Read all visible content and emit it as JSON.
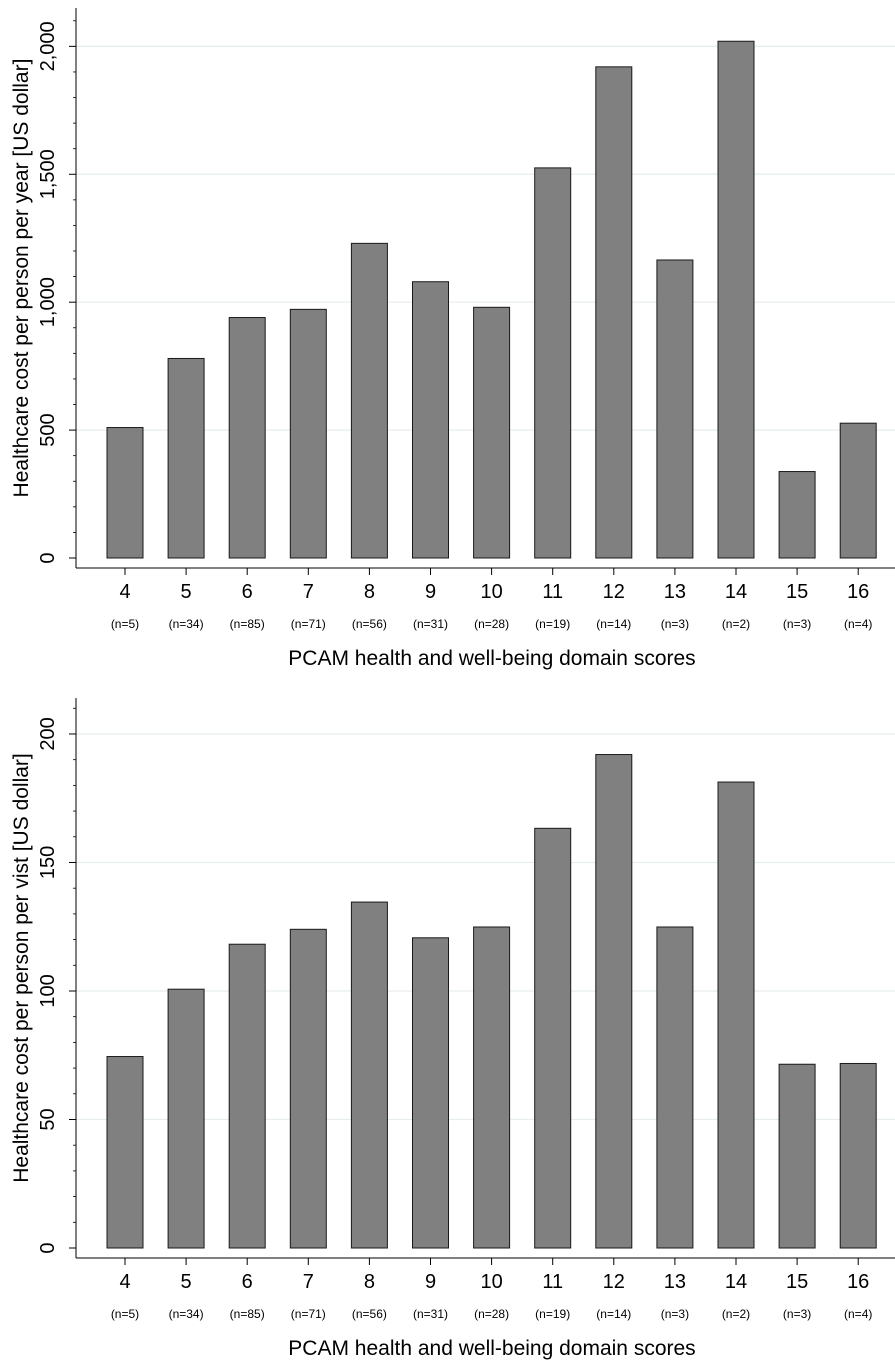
{
  "chart_data": [
    {
      "type": "bar",
      "title": "",
      "xlabel": "PCAM health and well-being domain scores",
      "ylabel": "Healthcare cost per person per year [US dollar]",
      "categories": [
        "4",
        "5",
        "6",
        "7",
        "8",
        "9",
        "10",
        "11",
        "12",
        "13",
        "14",
        "15",
        "16"
      ],
      "counts": [
        "(n=5)",
        "(n=34)",
        "(n=85)",
        "(n=71)",
        "(n=56)",
        "(n=31)",
        "(n=28)",
        "(n=19)",
        "(n=14)",
        "(n=3)",
        "(n=2)",
        "(n=3)",
        "(n=4)"
      ],
      "values": [
        510,
        780,
        940,
        972,
        1230,
        1080,
        980,
        1525,
        1920,
        1165,
        2020,
        338,
        527
      ],
      "ylim": [
        0,
        2150
      ],
      "yticks": [
        0,
        500,
        1000,
        1500,
        2000
      ],
      "ytick_labels": [
        "0",
        "500",
        "1,000",
        "1,500",
        "2,000"
      ],
      "minor_tick_step": 100,
      "grid": true,
      "bar_color": "#808080"
    },
    {
      "type": "bar",
      "title": "",
      "xlabel": "PCAM health and well-being domain scores",
      "ylabel": "Healthcare cost per person per vist [US dollar]",
      "categories": [
        "4",
        "5",
        "6",
        "7",
        "8",
        "9",
        "10",
        "11",
        "12",
        "13",
        "14",
        "15",
        "16"
      ],
      "counts": [
        "(n=5)",
        "(n=34)",
        "(n=85)",
        "(n=71)",
        "(n=56)",
        "(n=31)",
        "(n=28)",
        "(n=19)",
        "(n=14)",
        "(n=3)",
        "(n=2)",
        "(n=3)",
        "(n=4)"
      ],
      "values": [
        74.5,
        100.7,
        118.2,
        124,
        134.6,
        120.7,
        124.9,
        163.3,
        192,
        124.9,
        181.3,
        71.5,
        71.8
      ],
      "ylim": [
        0,
        214
      ],
      "yticks": [
        0,
        50,
        100,
        150,
        200
      ],
      "ytick_labels": [
        "0",
        "50",
        "100",
        "150",
        "200"
      ],
      "minor_tick_step": 10,
      "grid": true,
      "bar_color": "#808080"
    }
  ]
}
